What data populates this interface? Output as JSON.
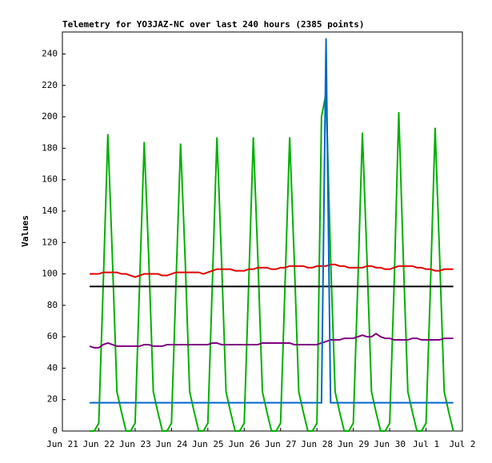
{
  "chart_data": {
    "type": "line",
    "title": "Telemetry for YO3JAZ-NC over last 240 hours (2385 points)",
    "y_label": "Values",
    "x": [
      21.75,
      21.875,
      22,
      22.125,
      22.25,
      22.375,
      22.5,
      22.625,
      22.75,
      22.875,
      23,
      23.125,
      23.25,
      23.375,
      23.5,
      23.625,
      23.75,
      23.875,
      24,
      24.125,
      24.25,
      24.375,
      24.5,
      24.625,
      24.75,
      24.875,
      25,
      25.125,
      25.25,
      25.375,
      25.5,
      25.625,
      25.75,
      25.875,
      26,
      26.125,
      26.25,
      26.375,
      26.5,
      26.625,
      26.75,
      26.875,
      27,
      27.125,
      27.25,
      27.375,
      27.5,
      27.625,
      27.75,
      27.875,
      28,
      28.125,
      28.25,
      28.375,
      28.5,
      28.625,
      28.75,
      28.875,
      29,
      29.125,
      29.25,
      29.375,
      29.5,
      29.625,
      29.75,
      29.875,
      30,
      30.125,
      30.25,
      30.375,
      30.5,
      30.625,
      30.75,
      30.875,
      31,
      31.125,
      31.25,
      31.375,
      31.5,
      31.625,
      31.75
    ],
    "xlim": [
      21,
      32
    ],
    "xticks": [
      {
        "value": 21,
        "label": "Jun 21"
      },
      {
        "value": 22,
        "label": "Jun 22"
      },
      {
        "value": 23,
        "label": "Jun 23"
      },
      {
        "value": 24,
        "label": "Jun 24"
      },
      {
        "value": 25,
        "label": "Jun 25"
      },
      {
        "value": 26,
        "label": "Jun 26"
      },
      {
        "value": 27,
        "label": "Jun 27"
      },
      {
        "value": 28,
        "label": "Jun 28"
      },
      {
        "value": 29,
        "label": "Jun 29"
      },
      {
        "value": 30,
        "label": "Jun 30"
      },
      {
        "value": 31,
        "label": "Jul 1"
      },
      {
        "value": 32,
        "label": "Jul 2"
      }
    ],
    "ylim": [
      0,
      254
    ],
    "yticks": [
      0,
      20,
      40,
      60,
      80,
      100,
      120,
      140,
      160,
      180,
      200,
      220,
      240
    ],
    "grid": false,
    "series": [
      {
        "color": "#00b000",
        "values": [
          0,
          0,
          5,
          95,
          189,
          110,
          25,
          12,
          0,
          0,
          5,
          95,
          184,
          110,
          25,
          12,
          0,
          0,
          5,
          95,
          183,
          110,
          25,
          12,
          0,
          0,
          5,
          95,
          187,
          110,
          25,
          12,
          0,
          0,
          5,
          95,
          187,
          110,
          25,
          12,
          0,
          0,
          5,
          95,
          187,
          110,
          25,
          12,
          0,
          0,
          5,
          200,
          215,
          110,
          25,
          12,
          0,
          0,
          5,
          95,
          190,
          110,
          25,
          12,
          0,
          0,
          5,
          95,
          203,
          110,
          25,
          12,
          0,
          0,
          5,
          95,
          193,
          110,
          25,
          12,
          0
        ]
      },
      {
        "color": "#e00000",
        "values": [
          100,
          100,
          100,
          101,
          101,
          101,
          101,
          100,
          100,
          99,
          98,
          99,
          100,
          100,
          100,
          100,
          99,
          99,
          100,
          101,
          101,
          101,
          101,
          101,
          101,
          100,
          101,
          102,
          103,
          103,
          103,
          103,
          102,
          102,
          102,
          103,
          103,
          104,
          104,
          104,
          103,
          103,
          104,
          104,
          105,
          105,
          105,
          105,
          104,
          104,
          105,
          105,
          105,
          106,
          106,
          105,
          105,
          104,
          104,
          104,
          104,
          105,
          105,
          104,
          104,
          103,
          103,
          104,
          105,
          105,
          105,
          105,
          104,
          104,
          103,
          103,
          102,
          102,
          103,
          103,
          103
        ]
      },
      {
        "color": "#000000",
        "values": [
          92,
          92,
          92,
          92,
          92,
          92,
          92,
          92,
          92,
          92,
          92,
          92,
          92,
          92,
          92,
          92,
          92,
          92,
          92,
          92,
          92,
          92,
          92,
          92,
          92,
          92,
          92,
          92,
          92,
          92,
          92,
          92,
          92,
          92,
          92,
          92,
          92,
          92,
          92,
          92,
          92,
          92,
          92,
          92,
          92,
          92,
          92,
          92,
          92,
          92,
          92,
          92,
          92,
          92,
          92,
          92,
          92,
          92,
          92,
          92,
          92,
          92,
          92,
          92,
          92,
          92,
          92,
          92,
          92,
          92,
          92,
          92,
          92,
          92,
          92,
          92,
          92,
          92,
          92,
          92,
          92
        ]
      },
      {
        "color": "#800080",
        "values": [
          54,
          53,
          53,
          55,
          56,
          55,
          54,
          54,
          54,
          54,
          54,
          54,
          55,
          55,
          54,
          54,
          54,
          55,
          55,
          55,
          55,
          55,
          55,
          55,
          55,
          55,
          55,
          56,
          56,
          55,
          55,
          55,
          55,
          55,
          55,
          55,
          55,
          55,
          56,
          56,
          56,
          56,
          56,
          56,
          56,
          55,
          55,
          55,
          55,
          55,
          55,
          56,
          57,
          58,
          58,
          58,
          59,
          59,
          59,
          60,
          61,
          60,
          60,
          62,
          60,
          59,
          59,
          58,
          58,
          58,
          58,
          59,
          59,
          58,
          58,
          58,
          58,
          58,
          59,
          59,
          59
        ]
      },
      {
        "color": "#0066cc",
        "values": [
          18,
          18,
          18,
          18,
          18,
          18,
          18,
          18,
          18,
          18,
          18,
          18,
          18,
          18,
          18,
          18,
          18,
          18,
          18,
          18,
          18,
          18,
          18,
          18,
          18,
          18,
          18,
          18,
          18,
          18,
          18,
          18,
          18,
          18,
          18,
          18,
          18,
          18,
          18,
          18,
          18,
          18,
          18,
          18,
          18,
          18,
          18,
          18,
          18,
          18,
          18,
          18,
          250,
          18,
          18,
          18,
          18,
          18,
          18,
          18,
          18,
          18,
          18,
          18,
          18,
          18,
          18,
          18,
          18,
          18,
          18,
          18,
          18,
          18,
          18,
          18,
          18,
          18,
          18,
          18,
          18
        ]
      }
    ]
  }
}
